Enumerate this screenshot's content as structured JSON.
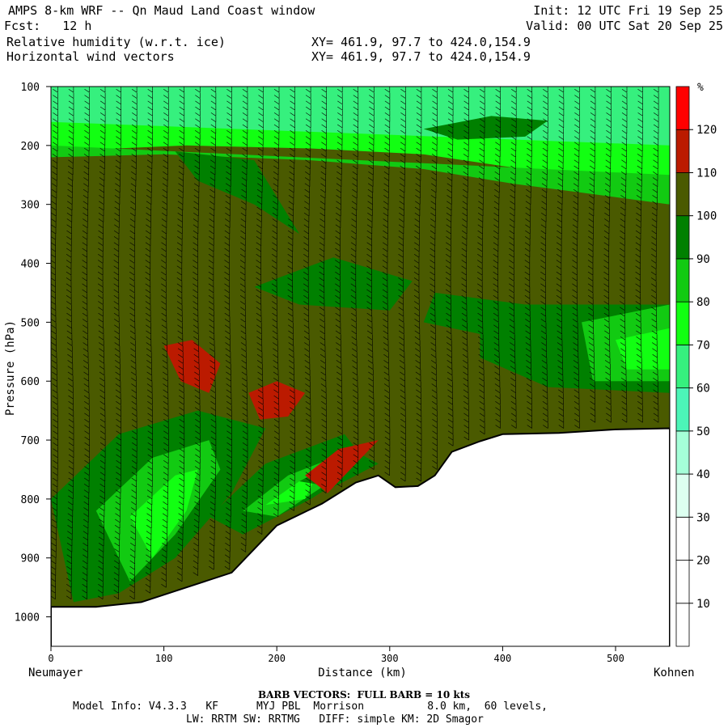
{
  "header": {
    "title": "AMPS 8-km WRF -- Qn Maud Land Coast window",
    "forecast": "Fcst:   12 h",
    "field1": "Relative humidity (w.r.t. ice)",
    "field2": "Horizontal wind vectors",
    "xy1": "XY= 461.9, 97.7 to 424.0,154.9",
    "xy2": "XY= 461.9, 97.7 to 424.0,154.9",
    "init": "Init: 12 UTC Fri 19 Sep 25",
    "valid": "Valid: 00 UTC Sat 20 Sep 25"
  },
  "footer": {
    "barb_note": "BARB VECTORS:  FULL BARB = 10 kts",
    "model_line1": "Model Info: V4.3.3   KF      MYJ PBL  Morrison          8.0 km,  60 levels,",
    "model_line2": "LW: RRTM SW: RRTMG   DIFF: simple KM: 2D Smagor"
  },
  "colors": {
    "background_rh": "#4a5a00",
    "ground": "#ffffff",
    "rh_scale": [
      "#ffffff",
      "#ffffff",
      "#ffffff",
      "#ddfff0",
      "#a5ffd8",
      "#4cf5b8",
      "#36f07e",
      "#12ff12",
      "#12ca12",
      "#008000",
      "#4a5a00",
      "#bb1a00",
      "#ff0000"
    ]
  },
  "chart_data": {
    "type": "heatmap",
    "xlabel": "Distance (km)",
    "ylabel": "Pressure (hPa)",
    "x_left_label": "Neumayer",
    "x_right_label": "Kohnen",
    "xlim": [
      0,
      548
    ],
    "ylim": [
      1050,
      100
    ],
    "x_ticks": [
      0,
      100,
      200,
      300,
      400,
      500
    ],
    "y_ticks": [
      100,
      200,
      300,
      400,
      500,
      600,
      700,
      800,
      900,
      1000
    ],
    "colorbar": {
      "unit": "%",
      "levels": [
        0,
        10,
        20,
        30,
        40,
        50,
        60,
        70,
        80,
        90,
        100,
        110,
        120,
        130
      ],
      "labels": [
        10,
        20,
        30,
        40,
        50,
        60,
        70,
        80,
        90,
        100,
        110,
        120
      ]
    },
    "terrain": [
      {
        "x": 0,
        "p": 983
      },
      {
        "x": 40,
        "p": 983
      },
      {
        "x": 80,
        "p": 975
      },
      {
        "x": 120,
        "p": 950
      },
      {
        "x": 160,
        "p": 925
      },
      {
        "x": 200,
        "p": 845
      },
      {
        "x": 240,
        "p": 808
      },
      {
        "x": 270,
        "p": 772
      },
      {
        "x": 290,
        "p": 760
      },
      {
        "x": 305,
        "p": 780
      },
      {
        "x": 325,
        "p": 778
      },
      {
        "x": 340,
        "p": 760
      },
      {
        "x": 355,
        "p": 720
      },
      {
        "x": 380,
        "p": 702
      },
      {
        "x": 400,
        "p": 690
      },
      {
        "x": 450,
        "p": 688
      },
      {
        "x": 500,
        "p": 682
      },
      {
        "x": 548,
        "p": 680
      }
    ],
    "rh_regions": [
      {
        "level": 30,
        "points": [
          [
            0,
            100
          ],
          [
            548,
            100
          ],
          [
            548,
            128
          ],
          [
            380,
            134
          ],
          [
            200,
            133
          ],
          [
            130,
            120
          ],
          [
            0,
            140
          ]
        ]
      },
      {
        "level": 40,
        "points": [
          [
            0,
            100
          ],
          [
            548,
            100
          ],
          [
            548,
            175
          ],
          [
            440,
            175
          ],
          [
            360,
            150
          ],
          [
            250,
            150
          ],
          [
            150,
            125
          ],
          [
            0,
            162
          ]
        ]
      },
      {
        "level": 50,
        "points": [
          [
            0,
            100
          ],
          [
            548,
            100
          ],
          [
            548,
            190
          ],
          [
            440,
            200
          ],
          [
            380,
            185
          ],
          [
            300,
            170
          ],
          [
            200,
            160
          ],
          [
            100,
            160
          ],
          [
            0,
            180
          ]
        ]
      },
      {
        "level": 60,
        "points": [
          [
            0,
            100
          ],
          [
            548,
            100
          ],
          [
            548,
            240
          ],
          [
            450,
            215
          ],
          [
            380,
            200
          ],
          [
            300,
            190
          ],
          [
            200,
            185
          ],
          [
            100,
            182
          ],
          [
            0,
            195
          ]
        ]
      },
      {
        "level": 70,
        "points": [
          [
            0,
            160
          ],
          [
            548,
            200
          ],
          [
            548,
            280
          ],
          [
            460,
            250
          ],
          [
            400,
            235
          ],
          [
            330,
            215
          ],
          [
            230,
            205
          ],
          [
            120,
            200
          ],
          [
            0,
            210
          ]
        ]
      },
      {
        "level": 80,
        "points": [
          [
            0,
            200
          ],
          [
            548,
            250
          ],
          [
            548,
            300
          ],
          [
            470,
            280
          ],
          [
            410,
            265
          ],
          [
            330,
            240
          ],
          [
            230,
            225
          ],
          [
            100,
            215
          ],
          [
            0,
            220
          ]
        ]
      },
      {
        "level": 90,
        "points": [
          [
            330,
            172
          ],
          [
            390,
            150
          ],
          [
            440,
            158
          ],
          [
            420,
            185
          ],
          [
            360,
            190
          ]
        ]
      },
      {
        "level": 90,
        "points": [
          [
            110,
            210
          ],
          [
            180,
            225
          ],
          [
            220,
            350
          ],
          [
            180,
            300
          ],
          [
            130,
            260
          ]
        ]
      },
      {
        "level": 90,
        "points": [
          [
            180,
            440
          ],
          [
            250,
            390
          ],
          [
            320,
            430
          ],
          [
            300,
            480
          ],
          [
            220,
            470
          ]
        ]
      },
      {
        "level": 90,
        "points": [
          [
            340,
            450
          ],
          [
            420,
            470
          ],
          [
            380,
            520
          ],
          [
            330,
            500
          ]
        ]
      },
      {
        "level": 90,
        "points": [
          [
            380,
            470
          ],
          [
            548,
            470
          ],
          [
            548,
            620
          ],
          [
            440,
            610
          ],
          [
            380,
            560
          ]
        ]
      },
      {
        "level": 80,
        "points": [
          [
            470,
            500
          ],
          [
            548,
            470
          ],
          [
            548,
            600
          ],
          [
            480,
            600
          ]
        ]
      },
      {
        "level": 70,
        "points": [
          [
            500,
            530
          ],
          [
            548,
            510
          ],
          [
            548,
            580
          ],
          [
            510,
            580
          ]
        ]
      },
      {
        "level": 90,
        "points": [
          [
            0,
            800
          ],
          [
            60,
            690
          ],
          [
            130,
            650
          ],
          [
            190,
            680
          ],
          [
            160,
            790
          ],
          [
            110,
            900
          ],
          [
            60,
            960
          ],
          [
            20,
            975
          ]
        ]
      },
      {
        "level": 80,
        "points": [
          [
            40,
            820
          ],
          [
            90,
            730
          ],
          [
            140,
            700
          ],
          [
            150,
            750
          ],
          [
            110,
            860
          ],
          [
            70,
            940
          ]
        ]
      },
      {
        "level": 70,
        "points": [
          [
            70,
            830
          ],
          [
            110,
            760
          ],
          [
            130,
            750
          ],
          [
            120,
            820
          ],
          [
            90,
            900
          ]
        ]
      },
      {
        "level": 90,
        "points": [
          [
            140,
            830
          ],
          [
            190,
            740
          ],
          [
            260,
            690
          ],
          [
            280,
            740
          ],
          [
            230,
            800
          ],
          [
            170,
            860
          ]
        ]
      },
      {
        "level": 80,
        "points": [
          [
            170,
            820
          ],
          [
            210,
            760
          ],
          [
            250,
            730
          ],
          [
            240,
            780
          ],
          [
            200,
            830
          ]
        ]
      },
      {
        "level": 70,
        "points": [
          [
            190,
            810
          ],
          [
            220,
            770
          ],
          [
            235,
            760
          ],
          [
            225,
            800
          ]
        ]
      },
      {
        "level": 90,
        "points": [
          [
            220,
            770
          ],
          [
            270,
            720
          ],
          [
            290,
            740
          ],
          [
            250,
            780
          ]
        ]
      },
      {
        "level": 110,
        "points": [
          [
            100,
            540
          ],
          [
            125,
            530
          ],
          [
            150,
            570
          ],
          [
            140,
            620
          ],
          [
            115,
            600
          ]
        ]
      },
      {
        "level": 110,
        "points": [
          [
            175,
            620
          ],
          [
            200,
            600
          ],
          [
            225,
            620
          ],
          [
            210,
            660
          ],
          [
            185,
            665
          ]
        ]
      },
      {
        "level": 110,
        "points": [
          [
            225,
            760
          ],
          [
            255,
            715
          ],
          [
            290,
            700
          ],
          [
            270,
            740
          ],
          [
            245,
            790
          ]
        ]
      }
    ]
  }
}
